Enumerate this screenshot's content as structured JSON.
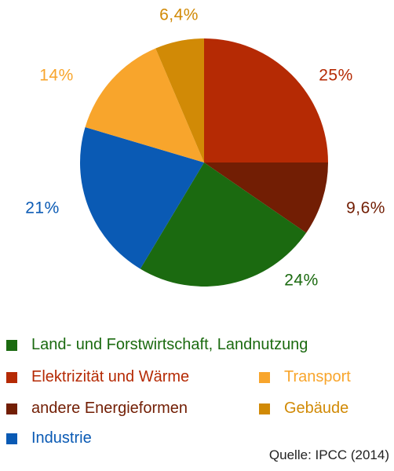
{
  "chart_data": {
    "type": "pie",
    "slices": [
      {
        "label": "Elektrizität und Wärme",
        "value": 25,
        "display": "25%",
        "color": "#b52a04"
      },
      {
        "label": "andere Energieformen",
        "value": 9.6,
        "display": "9,6%",
        "color": "#721e04"
      },
      {
        "label": "Land- und Forstwirtschaft, Landnutzung",
        "value": 24,
        "display": "24%",
        "color": "#1b6a10"
      },
      {
        "label": "Industrie",
        "value": 21,
        "display": "21%",
        "color": "#0a5ab4"
      },
      {
        "label": "Transport",
        "value": 14,
        "display": "14%",
        "color": "#f8a52c"
      },
      {
        "label": "Gebäude",
        "value": 6.4,
        "display": "6,4%",
        "color": "#d18a06"
      }
    ],
    "start_angle": "top",
    "direction": "clockwise",
    "legend_position": "bottom"
  },
  "legend": [
    {
      "label": "Land- und Forstwirtschaft, Landnutzung",
      "color": "#1b6a10"
    },
    {
      "label": "Elektrizität und Wärme",
      "color": "#b52a04"
    },
    {
      "label": "Transport",
      "color": "#f8a52c"
    },
    {
      "label": "andere Energieformen",
      "color": "#721e04"
    },
    {
      "label": "Gebäude",
      "color": "#d18a06"
    },
    {
      "label": "Industrie",
      "color": "#0a5ab4"
    }
  ],
  "source": "Quelle: IPCC (2014)"
}
